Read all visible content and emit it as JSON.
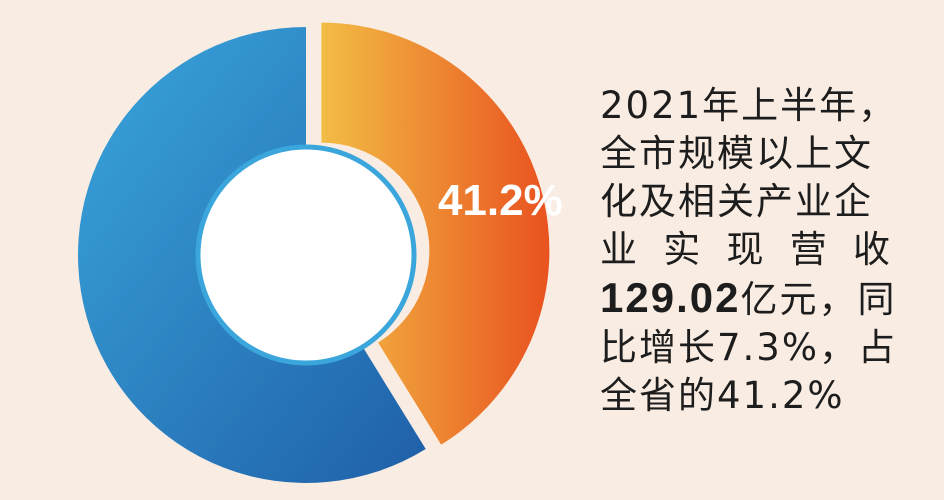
{
  "chart_data": {
    "type": "donut",
    "values": [
      41.2,
      58.8
    ],
    "value_labels": [
      "41.2%",
      null
    ],
    "colors": [
      [
        "#f2bd45",
        "#e9521f"
      ],
      [
        "#3aa6dc",
        "#1f5fa8"
      ]
    ],
    "annotation_lines": [
      [
        "2021年上半年，"
      ],
      [
        "全市规模以上文"
      ],
      [
        "化及相关产业企"
      ],
      [
        "业 实 现 营 收"
      ],
      [
        "129.02",
        "亿元，同"
      ],
      [
        "比增长7.3%，占"
      ],
      [
        "全省的41.2%"
      ]
    ]
  }
}
